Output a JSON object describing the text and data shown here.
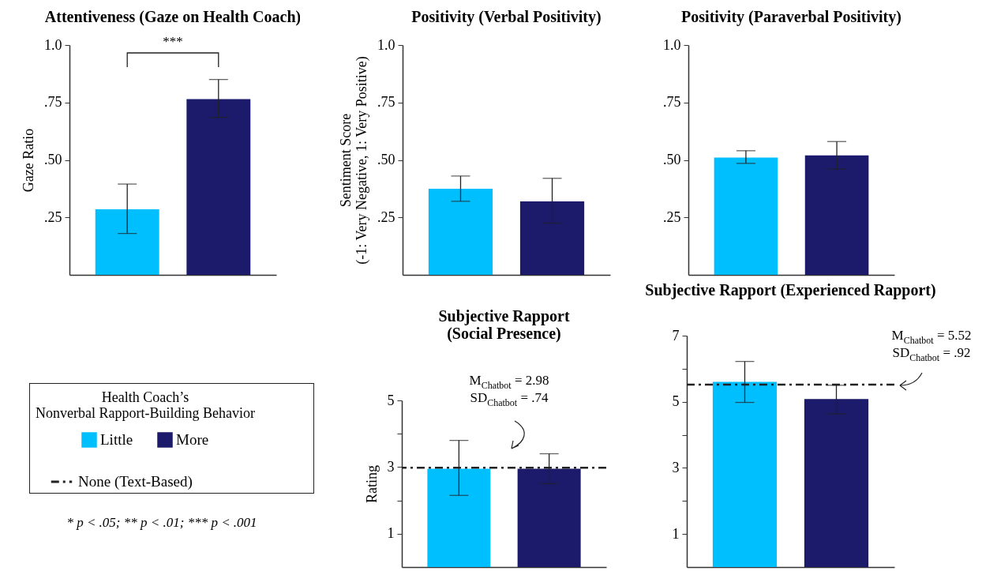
{
  "chart_data": [
    {
      "type": "bar",
      "title": "Attentiveness (Gaze on Health Coach)",
      "ylabel": "Gaze Ratio",
      "categories": [
        null
      ],
      "series": [
        {
          "color": "#00bfff",
          "values": [
            0.285
          ],
          "errors": [
            [
              0.18,
              0.395
            ]
          ]
        },
        {
          "color": "#1b1a6b",
          "values": [
            0.765
          ],
          "errors": [
            [
              0.685,
              0.85
            ]
          ]
        }
      ],
      "ylim": [
        0,
        1
      ],
      "yticks": [
        {
          "value": 0.25,
          "label": ".25"
        },
        {
          "value": 0.5,
          "label": ".50"
        },
        {
          "value": 0.75,
          "label": ".75"
        },
        {
          "value": 1,
          "label": "1.0"
        }
      ],
      "annotations": [
        "***",
        "* p < .05; ** p < .01; *** p < .001"
      ]
    },
    {
      "type": "bar",
      "title": "Positivity (Verbal Positivity)",
      "ylabel": "Sentiment Score\n(-1: Very Negative, 1: Very Positive)",
      "categories": [
        null
      ],
      "series": [
        {
          "color": "#00bfff",
          "values": [
            0.375
          ],
          "errors": [
            [
              0.32,
              0.43
            ]
          ]
        },
        {
          "color": "#1b1a6b",
          "values": [
            0.32
          ],
          "errors": [
            [
              0.225,
              0.42
            ]
          ]
        }
      ],
      "ylim": [
        0,
        1
      ],
      "yticks": [
        {
          "value": 0.25,
          "label": ".25"
        },
        {
          "value": 0.5,
          "label": ".50"
        },
        {
          "value": 0.75,
          "label": ".75"
        },
        {
          "value": 1,
          "label": "1.0"
        }
      ]
    },
    {
      "type": "bar",
      "title": "Positivity (Paraverbal Positivity)",
      "categories": [
        null
      ],
      "series": [
        {
          "color": "#00bfff",
          "values": [
            0.51
          ],
          "errors": [
            [
              0.485,
              0.54
            ]
          ]
        },
        {
          "color": "#1b1a6b",
          "values": [
            0.52
          ],
          "errors": [
            [
              0.46,
              0.58
            ]
          ]
        }
      ],
      "ylim": [
        0,
        1
      ],
      "yticks": [
        {
          "value": 0.25,
          "label": ".25"
        },
        {
          "value": 0.5,
          "label": ".50"
        },
        {
          "value": 0.75,
          "label": ".75"
        },
        {
          "value": 1,
          "label": "1.0"
        }
      ]
    },
    {
      "type": "bar",
      "title": "Subjective Rapport\n(Social Presence)",
      "ylabel": "Rating",
      "categories": [
        null
      ],
      "series": [
        {
          "name": "Little",
          "color": "#00bfff",
          "values": [
            2.95
          ],
          "errors": [
            [
              2.15,
              3.8
            ]
          ]
        },
        {
          "name": "More",
          "color": "#1b1a6b",
          "values": [
            2.95
          ],
          "errors": [
            [
              2.5,
              3.4
            ]
          ]
        }
      ],
      "ylim": [
        0,
        5
      ],
      "yticks": [
        1,
        {
          "value": 2,
          "label": null
        },
        3,
        {
          "value": 4,
          "label": null
        },
        5
      ],
      "ref_lines": [
        {
          "axis": "y",
          "value": 2.98,
          "label": "None (Text-Based)",
          "color": "#222222",
          "line_style": "dashed"
        }
      ],
      "legend": "left",
      "legend_title": "Health Coach’s\nNonverbal Rapport-Building Behavior",
      "annotations": [
        "M$_{Chatbot}$ =  2.98",
        "SD$_{Chatbot}$ = .74"
      ]
    },
    {
      "type": "bar",
      "title": "Subjective Rapport (Experienced Rapport)",
      "categories": [
        null
      ],
      "series": [
        {
          "color": "#00bfff",
          "values": [
            5.6
          ],
          "errors": [
            [
              4.98,
              6.22
            ]
          ]
        },
        {
          "color": "#1b1a6b",
          "values": [
            5.08
          ],
          "errors": [
            [
              4.63,
              5.5
            ]
          ]
        }
      ],
      "ylim": [
        0,
        7
      ],
      "yticks": [
        1,
        {
          "value": 2,
          "label": null
        },
        3,
        {
          "value": 4,
          "label": null
        },
        5,
        {
          "value": 6,
          "label": null
        },
        7
      ],
      "ref_lines": [
        {
          "axis": "y",
          "value": 5.52,
          "color": "#222222",
          "line_style": "dashed"
        }
      ],
      "annotations": [
        "M$_{Chatbot}$ =  5.52",
        "SD$_{Chatbot}$ = .92"
      ]
    }
  ]
}
